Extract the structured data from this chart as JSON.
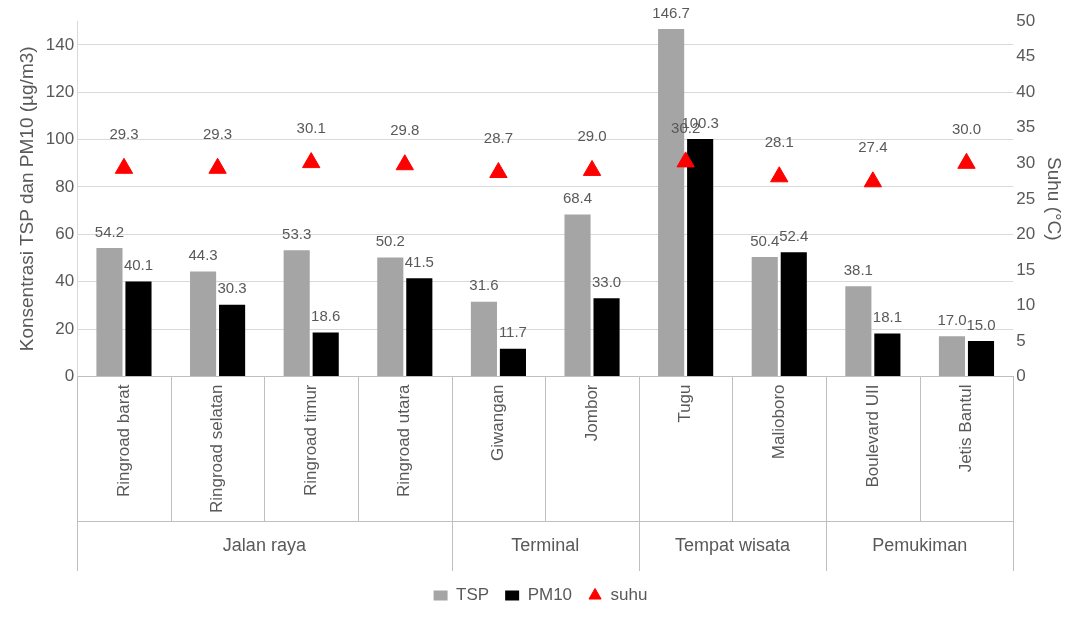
{
  "chart_data": {
    "type": "bar",
    "ylabel": "Konsentrasi TSP dan PM10 (µg/m3)",
    "y2label": "Suhu (°C)",
    "categories": [
      "Ringroad barat",
      "Ringroad selatan",
      "Ringroad timur",
      "Ringroad utara",
      "Giwangan",
      "Jombor",
      "Tugu",
      "Malioboro",
      "Boulevard UII",
      "Jetis Bantul"
    ],
    "series": [
      {
        "name": "TSP",
        "color": "#a5a5a5",
        "values": [
          54.2,
          44.3,
          53.3,
          50.2,
          31.6,
          68.4,
          146.7,
          50.4,
          38.1,
          17.0
        ],
        "value_labels": [
          "54.2",
          "44.3",
          "53.3",
          "50.2",
          "31.6",
          "68.4",
          "146.7",
          "50.4",
          "38.1",
          "17.0"
        ]
      },
      {
        "name": "PM10",
        "color": "#000000",
        "values": [
          40.1,
          30.3,
          18.6,
          41.5,
          11.7,
          33.0,
          100.3,
          52.4,
          18.1,
          15.0
        ],
        "value_labels": [
          "40.1",
          "30.3",
          "18.6",
          "41.5",
          "11.7",
          "33.0",
          "100.3",
          "52.4",
          "18.1",
          "15.0"
        ]
      },
      {
        "name": "suhu",
        "type": "scatter",
        "axis": "y2",
        "color": "#ff0000",
        "values": [
          29.3,
          29.3,
          30.1,
          29.8,
          28.7,
          29.0,
          30.2,
          28.1,
          27.4,
          30.0
        ],
        "value_labels": [
          "29.3",
          "29.3",
          "30.1",
          "29.8",
          "28.7",
          "29.0",
          "30.2",
          "28.1",
          "27.4",
          "30.0"
        ]
      }
    ],
    "ylim": [
      0,
      150
    ],
    "yticks": [
      0,
      20,
      40,
      60,
      80,
      100,
      120,
      140
    ],
    "y2lim": [
      0,
      50
    ],
    "y2ticks": [
      0,
      5,
      10,
      15,
      20,
      25,
      30,
      35,
      40,
      45,
      50
    ],
    "annotations": [
      "Jalan raya",
      "Terminal",
      "Tempat wisata",
      "Pemukiman"
    ],
    "grid": "y",
    "legend": "bottom",
    "marker": "triangle"
  }
}
